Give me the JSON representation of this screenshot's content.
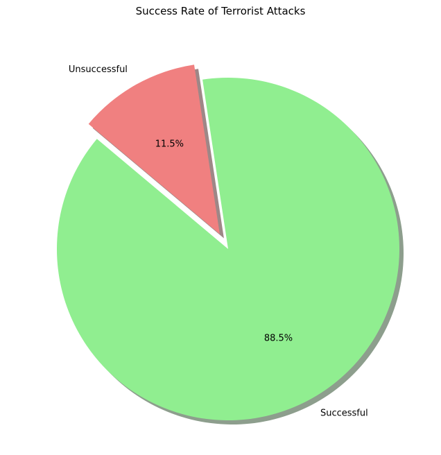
{
  "chart_data": {
    "type": "pie",
    "title": "Success Rate of Terrorist Attacks",
    "slices": [
      {
        "label": "Successful",
        "value": 88.5,
        "pct_label": "88.5%",
        "color": "#90ee90",
        "shadow_color": "#8d9e8d",
        "explode": 0
      },
      {
        "label": "Unsuccessful",
        "value": 11.5,
        "pct_label": "11.5%",
        "color": "#f08080",
        "shadow_color": "#9e8787",
        "explode": 0.1
      }
    ],
    "start_angle": 140,
    "shadow": true
  }
}
